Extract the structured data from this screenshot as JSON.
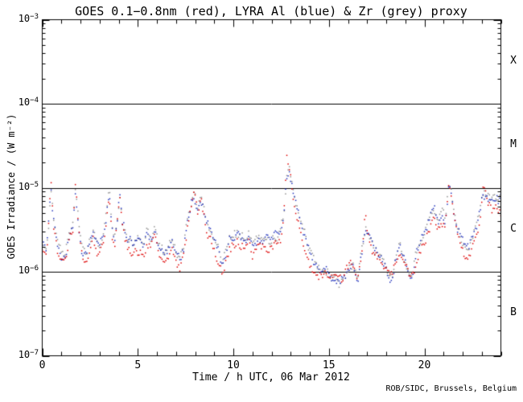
{
  "footer": {
    "credit": "ROB/SIDC, Brussels, Belgium"
  },
  "chart_data": {
    "type": "scatter",
    "title": "GOES 0.1−0.8nm (red), LYRA Al (blue) & Zr (grey) proxy",
    "xlabel": "Time / h UTC, 06 Mar 2012",
    "ylabel": "GOES Irradiance / (W m⁻²)",
    "y_scale": "log",
    "xlim": [
      0,
      24
    ],
    "ylim_log10": [
      -7,
      -3
    ],
    "x_ticks_major": [
      0,
      5,
      10,
      15,
      20
    ],
    "x_tick_minor_step": 1,
    "y_tick_exponents": [
      -3,
      -4,
      -5,
      -6,
      -7
    ],
    "grid": false,
    "legend": "encoded in title colors",
    "flare_class_lines_log10": [
      -4,
      -5,
      -6
    ],
    "flare_class_labels": [
      {
        "label": "X",
        "log10_y": -3.5
      },
      {
        "label": "M",
        "log10_y": -4.5
      },
      {
        "label": "C",
        "log10_y": -5.5
      },
      {
        "label": "B",
        "log10_y": -6.5
      }
    ],
    "t": [
      0,
      0.2,
      0.3,
      0.45,
      0.6,
      0.8,
      1,
      1.2,
      1.4,
      1.6,
      1.75,
      1.9,
      2.1,
      2.3,
      2.5,
      2.65,
      2.8,
      3,
      3.2,
      3.35,
      3.5,
      3.65,
      3.8,
      3.95,
      4.05,
      4.2,
      4.4,
      4.6,
      4.8,
      5,
      5.2,
      5.35,
      5.5,
      5.7,
      5.9,
      6.1,
      6.3,
      6.5,
      6.7,
      6.8,
      7,
      7.2,
      7.4,
      7.6,
      7.8,
      7.95,
      8.1,
      8.3,
      8.45,
      8.6,
      8.8,
      9,
      9.2,
      9.4,
      9.6,
      9.8,
      10,
      10.2,
      10.4,
      10.6,
      10.8,
      11,
      11.2,
      11.35,
      11.5,
      11.7,
      11.9,
      12.1,
      12.3,
      12.5,
      12.65,
      12.8,
      12.95,
      13.1,
      13.3,
      13.5,
      13.7,
      13.9,
      14.1,
      14.3,
      14.5,
      14.7,
      14.9,
      15.1,
      15.3,
      15.5,
      15.7,
      15.9,
      16.1,
      16.3,
      16.5,
      16.7,
      16.9,
      17.1,
      17.3,
      17.5,
      17.7,
      17.9,
      18.1,
      18.3,
      18.5,
      18.7,
      18.9,
      19.1,
      19.3,
      19.5,
      19.7,
      19.9,
      20.1,
      20.3,
      20.5,
      20.7,
      20.9,
      21.1,
      21.3,
      21.5,
      21.7,
      21.9,
      22.1,
      22.3,
      22.5,
      22.7,
      22.9,
      23.1,
      23.3,
      23.5,
      23.7,
      23.9,
      24
    ],
    "series": [
      {
        "name": "GOES 0.1-0.8nm",
        "color": "#dd0000",
        "values": [
          1.9e-06,
          1.6e-06,
          2.5e-06,
          1.3e-05,
          3.5e-06,
          1.6e-06,
          1.25e-06,
          1.3e-06,
          2.2e-06,
          3e-06,
          1.25e-05,
          3e-06,
          1.45e-06,
          1.3e-06,
          1.8e-06,
          2.4e-06,
          1.9e-06,
          1.6e-06,
          2.2e-06,
          4e-06,
          8.5e-06,
          3e-06,
          2.2e-06,
          4.5e-06,
          9.5e-06,
          3.5e-06,
          2.1e-06,
          1.8e-06,
          1.75e-06,
          1.8e-06,
          1.6e-06,
          1.7e-06,
          2.2e-06,
          1.9e-06,
          2.6e-06,
          1.5e-06,
          1.35e-06,
          1.3e-06,
          1.8e-06,
          1.9e-06,
          1.3e-06,
          1.05e-06,
          1.5e-06,
          3.5e-06,
          6e-06,
          9.5e-06,
          5e-06,
          7e-06,
          4.5e-06,
          3e-06,
          2.6e-06,
          2e-06,
          1.4e-06,
          1e-06,
          1.3e-06,
          1.9e-06,
          2.1e-06,
          2.2e-06,
          2.1e-06,
          1.8e-06,
          2.2e-06,
          1.6e-06,
          1.8e-06,
          2.1e-06,
          1.9e-06,
          2e-06,
          1.9e-06,
          2e-06,
          2.1e-06,
          2.5e-06,
          6e-06,
          2.2e-05,
          1.5e-05,
          8e-06,
          4.5e-06,
          2.8e-06,
          1.9e-06,
          1.4e-06,
          1.15e-06,
          1e-06,
          9.2e-07,
          9e-07,
          9.5e-07,
          8.5e-07,
          8e-07,
          7.8e-07,
          8e-07,
          9.5e-07,
          1.15e-06,
          1.05e-06,
          8.5e-07,
          1.3e-06,
          4.3e-06,
          2.5e-06,
          1.6e-06,
          1.5e-06,
          1.3e-06,
          1.1e-06,
          1e-06,
          1e-06,
          1.3e-06,
          1.6e-06,
          1.3e-06,
          1e-06,
          8.5e-07,
          1.1e-06,
          1.6e-06,
          2.1e-06,
          2.8e-06,
          3.6e-06,
          4.2e-06,
          3.2e-06,
          3.8e-06,
          3.4e-06,
          1.3e-05,
          5e-06,
          2.8e-06,
          2e-06,
          1.6e-06,
          1.5e-06,
          2e-06,
          2.8e-06,
          4.3e-06,
          1.05e-05,
          6.5e-06,
          5.5e-06,
          6e-06,
          5e-06,
          4.8e-06
        ]
      },
      {
        "name": "LYRA Al proxy",
        "color": "#2233bb",
        "values": [
          2.3e-06,
          2e-06,
          2.9e-06,
          9e-06,
          4e-06,
          2e-06,
          1.5e-06,
          1.6e-06,
          2.6e-06,
          3.4e-06,
          9.5e-06,
          3.4e-06,
          1.8e-06,
          1.6e-06,
          2.2e-06,
          2.9e-06,
          2.3e-06,
          1.9e-06,
          2.6e-06,
          4.4e-06,
          9e-06,
          3.5e-06,
          2.6e-06,
          5e-06,
          9e-06,
          4e-06,
          2.6e-06,
          2.3e-06,
          2.2e-06,
          2.3e-06,
          2e-06,
          2.1e-06,
          3e-06,
          2.4e-06,
          3.2e-06,
          1.9e-06,
          1.7e-06,
          1.6e-06,
          2.3e-06,
          2.4e-06,
          1.6e-06,
          1.3e-06,
          1.8e-06,
          4e-06,
          6.5e-06,
          8.5e-06,
          5.5e-06,
          7.5e-06,
          5e-06,
          3.5e-06,
          3e-06,
          2.4e-06,
          1.7e-06,
          1.1e-06,
          1.6e-06,
          2.4e-06,
          2.6e-06,
          2.7e-06,
          2.6e-06,
          2.2e-06,
          2.7e-06,
          2e-06,
          2.3e-06,
          2.6e-06,
          2.4e-06,
          2.5e-06,
          2.4e-06,
          2.5e-06,
          2.6e-06,
          3e-06,
          5.5e-06,
          1.4e-05,
          1.6e-05,
          1.1e-05,
          6.5e-06,
          4e-06,
          2.8e-06,
          1.9e-06,
          1.5e-06,
          1.25e-06,
          1.05e-06,
          1e-06,
          1.05e-06,
          9e-07,
          8e-07,
          7.3e-07,
          7.5e-07,
          9e-07,
          1.2e-06,
          1.1e-06,
          8e-07,
          1.5e-06,
          3.3e-06,
          2.8e-06,
          1.9e-06,
          1.8e-06,
          1.5e-06,
          1.2e-06,
          9.5e-07,
          7.5e-07,
          1.5e-06,
          1.9e-06,
          1.5e-06,
          1.1e-06,
          9e-07,
          1.4e-06,
          2e-06,
          2.6e-06,
          3.4e-06,
          4.4e-06,
          5.2e-06,
          4e-06,
          4.9e-06,
          4.2e-06,
          1.25e-05,
          6e-06,
          3.4e-06,
          2.5e-06,
          2e-06,
          1.9e-06,
          2.5e-06,
          3.4e-06,
          5e-06,
          8.5e-06,
          7.5e-06,
          7e-06,
          7.5e-06,
          7e-06,
          7.2e-06
        ]
      },
      {
        "name": "LYRA Zr proxy",
        "color": "#919191",
        "values": [
          2.4e-06,
          2.1e-06,
          3e-06,
          9.2e-06,
          4.2e-06,
          2.1e-06,
          1.6e-06,
          1.7e-06,
          2.7e-06,
          3.5e-06,
          9.7e-06,
          3.5e-06,
          1.9e-06,
          1.7e-06,
          2.3e-06,
          3e-06,
          2.4e-06,
          2e-06,
          2.7e-06,
          4.6e-06,
          9.2e-06,
          3.6e-06,
          2.7e-06,
          5.2e-06,
          9.2e-06,
          4.2e-06,
          2.7e-06,
          2.4e-06,
          2.3e-06,
          2.4e-06,
          2.1e-06,
          2.2e-06,
          3.1e-06,
          2.5e-06,
          3.4e-06,
          2e-06,
          1.8e-06,
          1.7e-06,
          2.4e-06,
          2.5e-06,
          1.7e-06,
          1.35e-06,
          1.9e-06,
          4.1e-06,
          6.7e-06,
          8.7e-06,
          5.7e-06,
          7.7e-06,
          5.2e-06,
          3.6e-06,
          3.1e-06,
          2.5e-06,
          1.8e-06,
          1.15e-06,
          1.7e-06,
          2.5e-06,
          2.7e-06,
          2.8e-06,
          2.7e-06,
          2.3e-06,
          2.8e-06,
          2.1e-06,
          2.4e-06,
          2.7e-06,
          2.5e-06,
          2.6e-06,
          2.5e-06,
          2.6e-06,
          2.7e-06,
          3.1e-06,
          5.2e-06,
          1.5e-05,
          1.55e-05,
          1.05e-05,
          6.2e-06,
          3.8e-06,
          2.9e-06,
          2e-06,
          1.55e-06,
          1.3e-06,
          1.1e-06,
          1.05e-06,
          1.1e-06,
          9.3e-07,
          8.2e-07,
          7.6e-07,
          7.8e-07,
          9.3e-07,
          1.25e-06,
          1.15e-06,
          8.3e-07,
          1.55e-06,
          3.4e-06,
          2.9e-06,
          2e-06,
          1.85e-06,
          1.55e-06,
          1.25e-06,
          1e-06,
          7.8e-07,
          1.55e-06,
          2e-06,
          1.55e-06,
          1.15e-06,
          9.3e-07,
          1.45e-06,
          2.05e-06,
          2.7e-06,
          3.5e-06,
          4.5e-06,
          5.4e-06,
          4.1e-06,
          5.1e-06,
          4.3e-06,
          1.26e-05,
          6.1e-06,
          3.5e-06,
          2.6e-06,
          2.1e-06,
          2e-06,
          2.6e-06,
          3.5e-06,
          5.2e-06,
          8.4e-06,
          7.7e-06,
          7.2e-06,
          7.7e-06,
          7.3e-06,
          7.5e-06
        ]
      }
    ]
  }
}
